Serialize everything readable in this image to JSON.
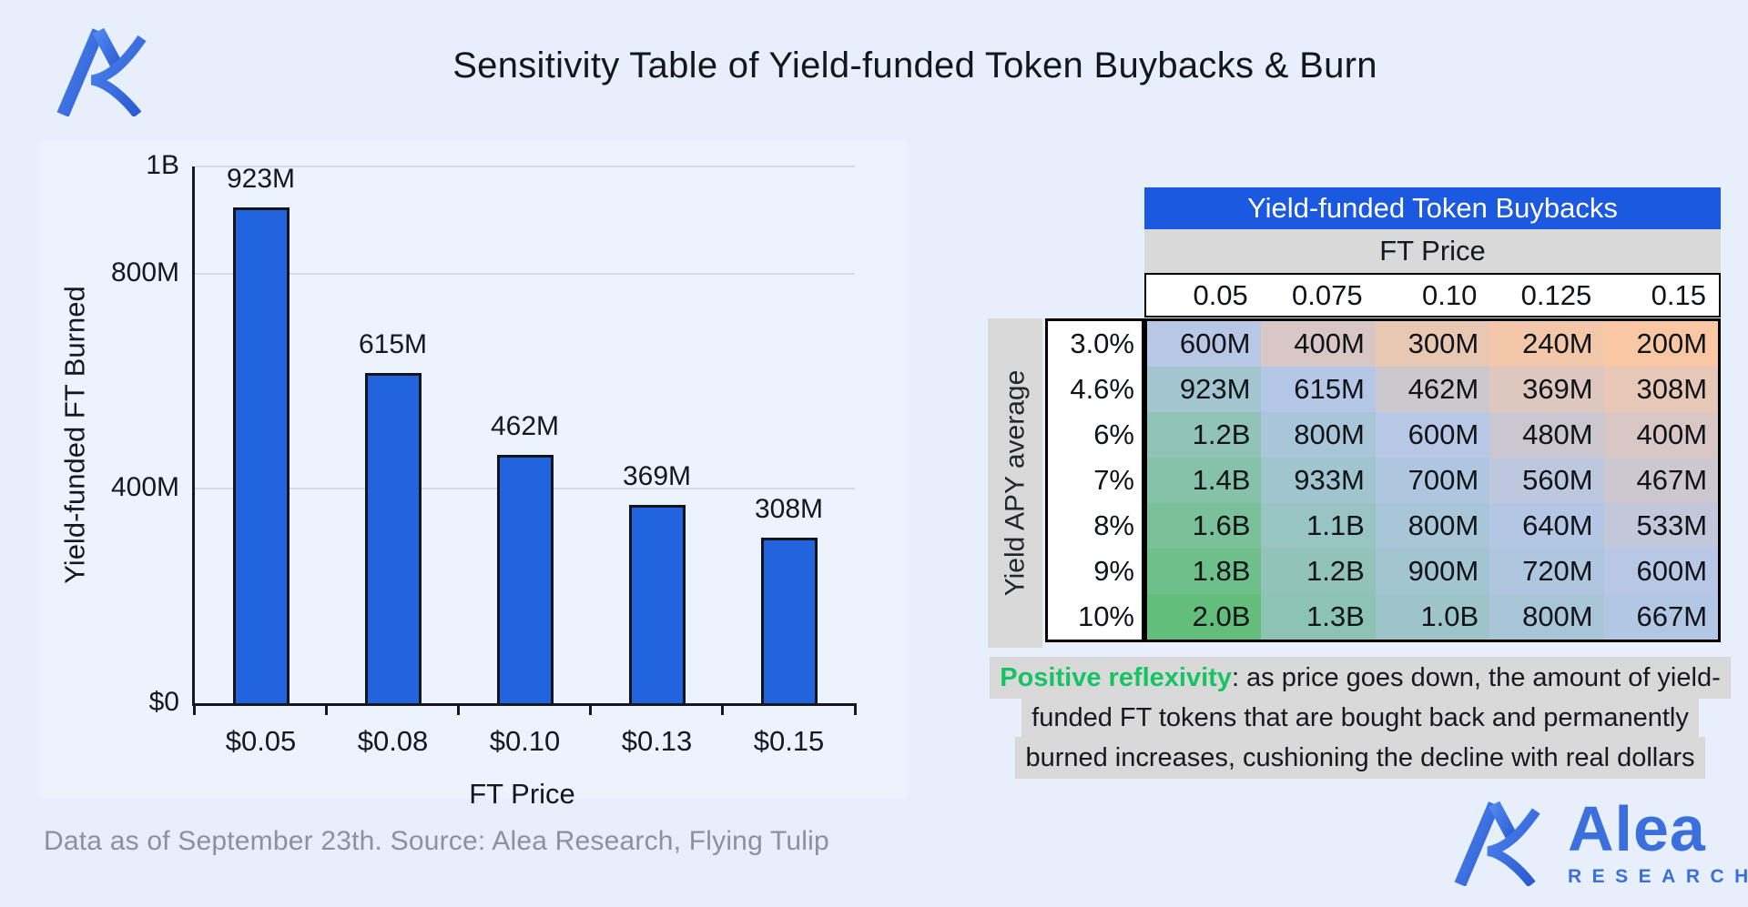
{
  "page": {
    "title": "Sensitivity Table of Yield-funded Token Buybacks & Burn",
    "footer": "Data as of September 23th. Source: Alea Research, Flying Tulip",
    "background": "#e7effc"
  },
  "brand": {
    "name": "Alea",
    "subname": "RESEARCH",
    "blue": "#3a6fdc"
  },
  "chart_data": {
    "type": "bar",
    "title": "",
    "categories": [
      "$0.05",
      "$0.08",
      "$0.10",
      "$0.13",
      "$0.15"
    ],
    "values": [
      923,
      615,
      462,
      369,
      308
    ],
    "value_labels": [
      "923M",
      "615M",
      "462M",
      "369M",
      "308M"
    ],
    "unit": "millions of FT tokens",
    "xlabel": "FT Price",
    "ylabel": "Yield-funded FT Burned",
    "ylim": [
      0,
      1000
    ],
    "yticks": [
      {
        "label": "$0",
        "value": 0
      },
      {
        "label": "400M",
        "value": 400
      },
      {
        "label": "800M",
        "value": 800
      },
      {
        "label": "1B",
        "value": 1000
      }
    ],
    "grid": true,
    "legend": "none",
    "bar_color": "#2263DE",
    "bar_border": "#10141d",
    "gridline_color": "#d6dce6"
  },
  "table": {
    "header": "Yield-funded Token Buybacks",
    "header_bg": "#1c59e1",
    "subheader": "FT Price",
    "subheader_bg": "#d9d9d9",
    "col_headers": [
      "0.05",
      "0.075",
      "0.10",
      "0.125",
      "0.15"
    ],
    "row_axis_label": "Yield APY average",
    "rows": [
      {
        "apy": "3.0%",
        "cells": [
          {
            "v": "600M",
            "c": "#B7C7E5"
          },
          {
            "v": "400M",
            "c": "#D8C7C4"
          },
          {
            "v": "300M",
            "c": "#E8C7B3"
          },
          {
            "v": "240M",
            "c": "#F2C7AA"
          },
          {
            "v": "200M",
            "c": "#F9C7A3"
          }
        ]
      },
      {
        "apy": "4.6%",
        "cells": [
          {
            "v": "923M",
            "c": "#A2C5CF"
          },
          {
            "v": "615M",
            "c": "#B4C7E7"
          },
          {
            "v": "462M",
            "c": "#CDC7CE"
          },
          {
            "v": "369M",
            "c": "#DDC7BF"
          },
          {
            "v": "308M",
            "c": "#E7C7B5"
          }
        ]
      },
      {
        "apy": "6%",
        "cells": [
          {
            "v": "1.2B",
            "c": "#92C3B9"
          },
          {
            "v": "800M",
            "c": "#A9C6D9"
          },
          {
            "v": "600M",
            "c": "#B7C7E5"
          },
          {
            "v": "480M",
            "c": "#CAC7D1"
          },
          {
            "v": "400M",
            "c": "#D8C7C4"
          }
        ]
      },
      {
        "apy": "7%",
        "cells": [
          {
            "v": "1.4B",
            "c": "#86C2AA"
          },
          {
            "v": "933M",
            "c": "#A1C5CE"
          },
          {
            "v": "700M",
            "c": "#AFC6E0"
          },
          {
            "v": "560M",
            "c": "#BDC7DE"
          },
          {
            "v": "467M",
            "c": "#CDC7CF"
          }
        ]
      },
      {
        "apy": "8%",
        "cells": [
          {
            "v": "1.6B",
            "c": "#7AC19A"
          },
          {
            "v": "1.1B",
            "c": "#98C4C1"
          },
          {
            "v": "800M",
            "c": "#A9C6D9"
          },
          {
            "v": "640M",
            "c": "#B3C7E5"
          },
          {
            "v": "533M",
            "c": "#C2C7DA"
          }
        ]
      },
      {
        "apy": "9%",
        "cells": [
          {
            "v": "1.8B",
            "c": "#6FBF8B"
          },
          {
            "v": "1.2B",
            "c": "#92C3B9"
          },
          {
            "v": "900M",
            "c": "#A3C5D1"
          },
          {
            "v": "720M",
            "c": "#AEC6DF"
          },
          {
            "v": "600M",
            "c": "#B7C7E5"
          }
        ]
      },
      {
        "apy": "10%",
        "cells": [
          {
            "v": "2.0B",
            "c": "#63BE7B"
          },
          {
            "v": "1.3B",
            "c": "#8CC3B2"
          },
          {
            "v": "1.0B",
            "c": "#9DC4C9"
          },
          {
            "v": "800M",
            "c": "#A9C6D9"
          },
          {
            "v": "667M",
            "c": "#B1C7E3"
          }
        ]
      }
    ]
  },
  "note": {
    "lead": "Positive reflexivity",
    "lead_color": "#17c464",
    "line1_rest": ": as price goes down, the amount of yield-",
    "line2": "funded FT tokens that are bought back and permanently",
    "line3": "burned increases, cushioning the decline with real dollars"
  }
}
